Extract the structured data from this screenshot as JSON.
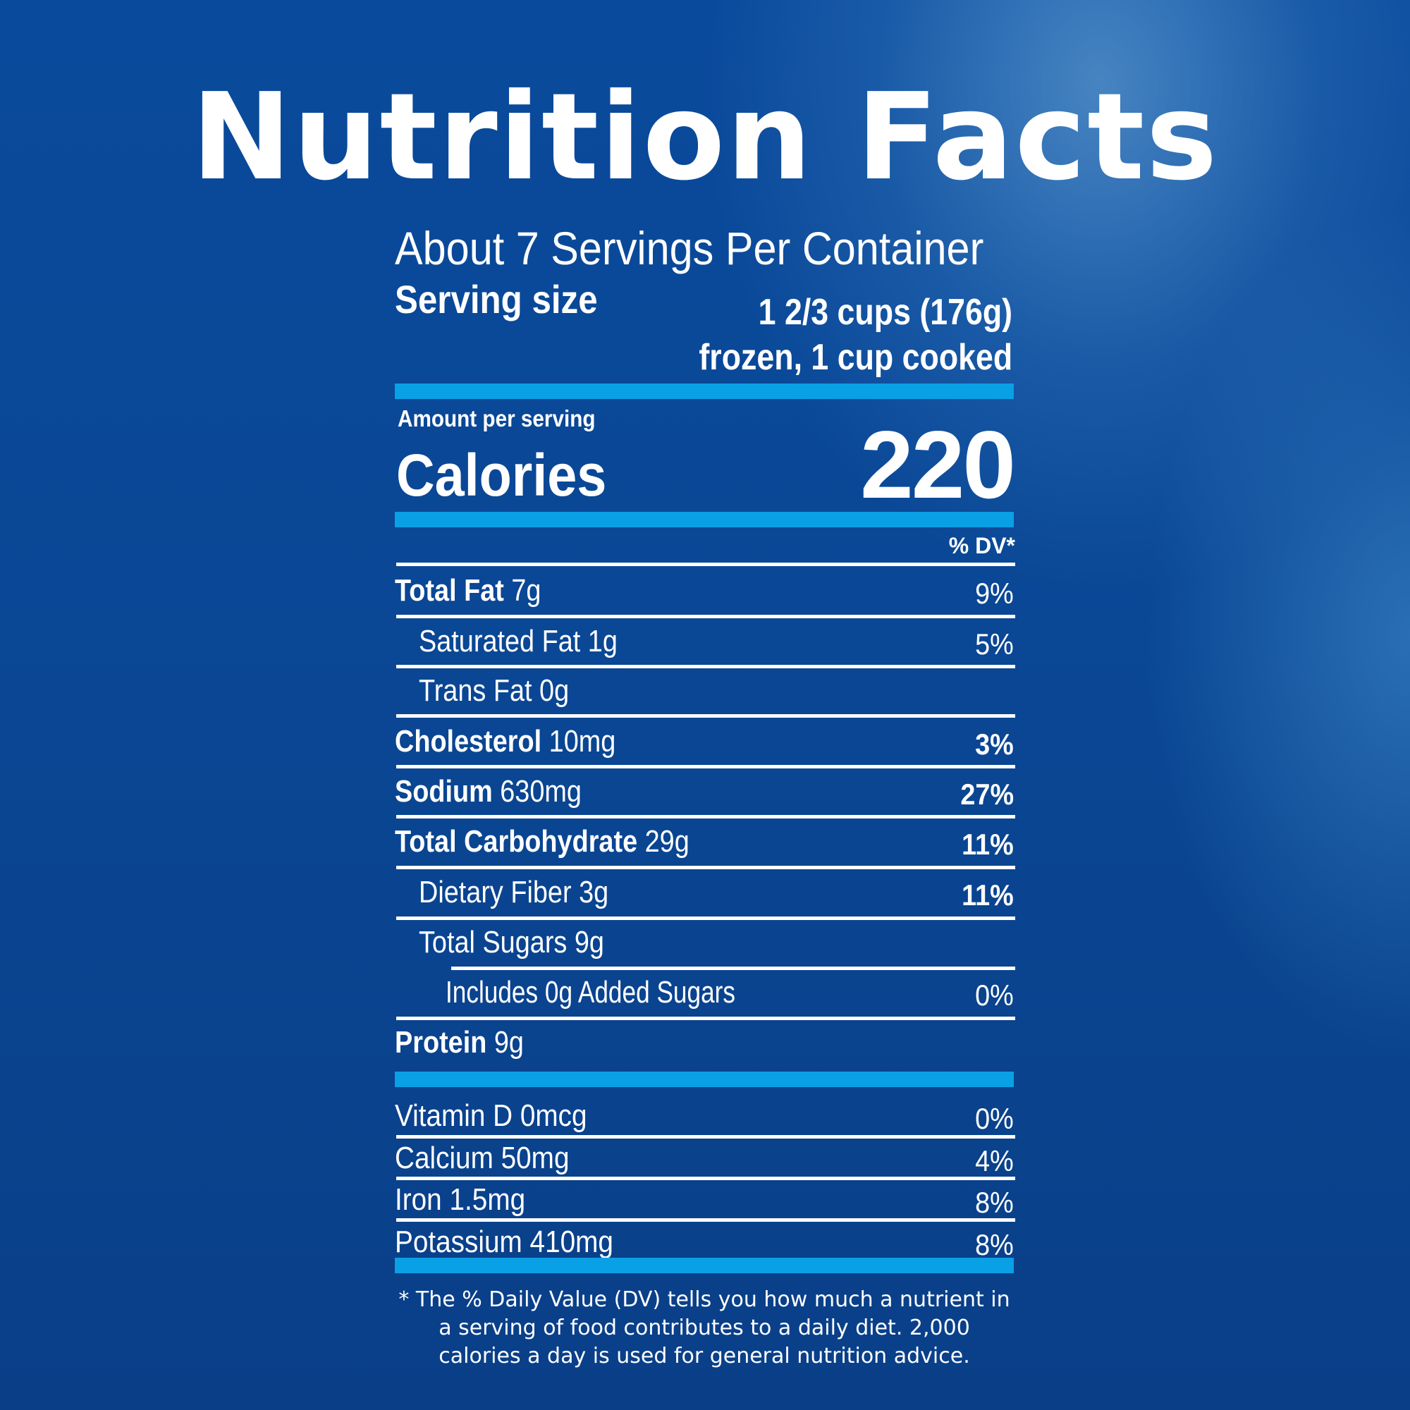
{
  "title": "Nutrition Facts",
  "servings_per_container": "About 7 Servings Per Container",
  "serving_size": {
    "label": "Serving size",
    "value_line1": "1 2/3 cups (176g)",
    "value_line2": "frozen, 1 cup cooked"
  },
  "amount_per_serving": "Amount per serving",
  "calories": {
    "label": "Calories",
    "value": "220"
  },
  "dv_header": "% DV*",
  "nutrients": [
    {
      "name": "Total Fat",
      "amount": "7g",
      "dv": "9%"
    },
    {
      "name": "Saturated Fat",
      "amount": "1g",
      "dv": "5%"
    },
    {
      "name": "Trans Fat",
      "amount": "0g",
      "dv": ""
    },
    {
      "name": "Cholesterol",
      "amount": "10mg",
      "dv": "3%"
    },
    {
      "name": "Sodium",
      "amount": "630mg",
      "dv": "27%"
    },
    {
      "name": "Total Carbohydrate",
      "amount": "29g",
      "dv": "11%"
    },
    {
      "name": "Dietary Fiber",
      "amount": "3g",
      "dv": "11%"
    },
    {
      "name": "Total Sugars",
      "amount": "9g",
      "dv": ""
    },
    {
      "name": "Includes 0g Added Sugars",
      "amount": "",
      "dv": "0%"
    },
    {
      "name": "Protein",
      "amount": "9g",
      "dv": ""
    }
  ],
  "vitamins": [
    {
      "name": "Vitamin D",
      "amount": "0mcg",
      "dv": "0%"
    },
    {
      "name": "Calcium",
      "amount": "50mg",
      "dv": "4%"
    },
    {
      "name": "Iron",
      "amount": "1.5mg",
      "dv": "8%"
    },
    {
      "name": "Potassium",
      "amount": "410mg",
      "dv": "8%"
    }
  ],
  "footnote": "* The % Daily Value (DV) tells you how much a nutrient in a serving of food contributes to a daily diet. 2,000 calories a day is used for general nutrition advice.",
  "colors": {
    "background": "#0a4795",
    "accent_bar": "#0aa0e6",
    "text": "#ffffff"
  }
}
